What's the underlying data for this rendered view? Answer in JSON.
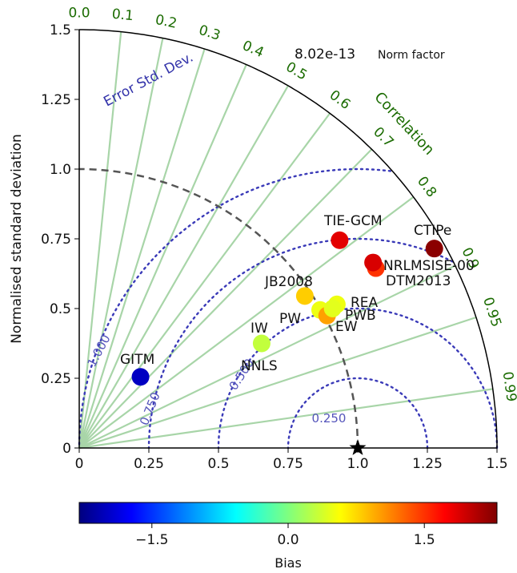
{
  "chart_data": {
    "type": "scatter",
    "subtype": "taylor-diagram",
    "ylabel": "Normalised standard deviation",
    "angular_label": "Correlation",
    "rms_label": "Error Std. Dev.",
    "norm_factor": "8.02e-13",
    "norm_factor_label": "Norm factor",
    "stdev_range": [
      0,
      1.5
    ],
    "x_ticks": [
      "0",
      "0.25",
      "0.5",
      "0.75",
      "1.0",
      "1.25",
      "1.5"
    ],
    "y_ticks": [
      "0",
      "0.25",
      "0.5",
      "0.75",
      "1.0",
      "1.25",
      "1.5"
    ],
    "correlation_ticks": [
      "0.0",
      "0.1",
      "0.2",
      "0.3",
      "0.4",
      "0.5",
      "0.6",
      "0.7",
      "0.8",
      "0.9",
      "0.95",
      "0.99"
    ],
    "rms_contours": [
      "0.250",
      "0.500",
      "0.750",
      "1.000"
    ],
    "reference_stdev": 1.0,
    "colorbar": {
      "label": "Bias",
      "range": [
        -2.3,
        2.3
      ],
      "ticks": [
        "−1.5",
        "0.0",
        "1.5"
      ],
      "tick_values": [
        -1.5,
        0.0,
        1.5
      ]
    },
    "points": [
      {
        "label": "GITM",
        "x": 0.22,
        "y": 0.255,
        "bias": -2.0
      },
      {
        "label": "IW",
        "x": 0.655,
        "y": 0.375,
        "bias": 0.3
      },
      {
        "label": "NNLS",
        "x": 0.655,
        "y": 0.375,
        "bias": 0.3
      },
      {
        "label": "JB2008",
        "x": 0.81,
        "y": 0.545,
        "bias": 0.8
      },
      {
        "label": "PW",
        "x": 0.865,
        "y": 0.495,
        "bias": 0.5
      },
      {
        "label": "EW",
        "x": 0.89,
        "y": 0.475,
        "bias": 1.0
      },
      {
        "label": "REA",
        "x": 0.925,
        "y": 0.515,
        "bias": 0.5
      },
      {
        "label": "PWB",
        "x": 0.91,
        "y": 0.5,
        "bias": 0.45
      },
      {
        "label": "TIE-GCM",
        "x": 0.935,
        "y": 0.745,
        "bias": 1.85
      },
      {
        "label": "DTM2013",
        "x": 1.065,
        "y": 0.645,
        "bias": 1.5
      },
      {
        "label": "NRLMSISE-00",
        "x": 1.055,
        "y": 0.665,
        "bias": 1.9
      },
      {
        "label": "CTIPe",
        "x": 1.275,
        "y": 0.715,
        "bias": 2.25
      }
    ]
  }
}
